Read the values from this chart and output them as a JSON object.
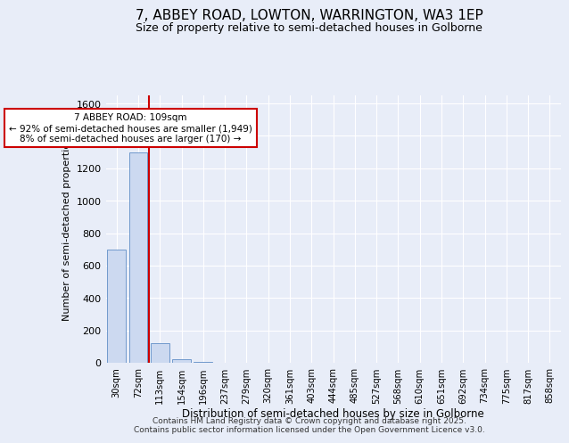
{
  "title_line1": "7, ABBEY ROAD, LOWTON, WARRINGTON, WA3 1EP",
  "title_line2": "Size of property relative to semi-detached houses in Golborne",
  "xlabel": "Distribution of semi-detached houses by size in Golborne",
  "ylabel": "Number of semi-detached properties",
  "categories": [
    "30sqm",
    "72sqm",
    "113sqm",
    "154sqm",
    "196sqm",
    "237sqm",
    "279sqm",
    "320sqm",
    "361sqm",
    "403sqm",
    "444sqm",
    "485sqm",
    "527sqm",
    "568sqm",
    "610sqm",
    "651sqm",
    "692sqm",
    "734sqm",
    "775sqm",
    "817sqm",
    "858sqm"
  ],
  "values": [
    700,
    1300,
    120,
    20,
    5,
    0,
    0,
    0,
    0,
    0,
    0,
    0,
    0,
    0,
    0,
    0,
    0,
    0,
    0,
    0,
    0
  ],
  "bar_color": "#ccd9f0",
  "bar_edge_color": "#7099cc",
  "property_line_color": "#cc0000",
  "property_line_x": 1.5,
  "annotation_text_line1": "7 ABBEY ROAD: 109sqm",
  "annotation_text_line2": "← 92% of semi-detached houses are smaller (1,949)",
  "annotation_text_line3": "8% of semi-detached houses are larger (170) →",
  "annotation_box_color": "#cc0000",
  "ylim": [
    0,
    1650
  ],
  "yticks": [
    0,
    200,
    400,
    600,
    800,
    1000,
    1200,
    1400,
    1600
  ],
  "background_color": "#e8edf8",
  "grid_color": "#ffffff",
  "footer_line1": "Contains HM Land Registry data © Crown copyright and database right 2025.",
  "footer_line2": "Contains public sector information licensed under the Open Government Licence v3.0."
}
